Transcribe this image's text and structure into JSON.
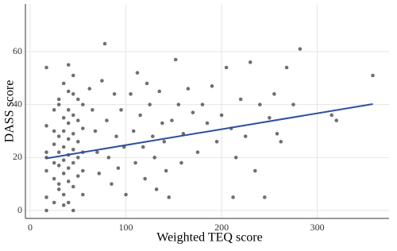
{
  "chart_data": {
    "type": "scatter",
    "x_label": "Weighted TEQ score",
    "y_label": "DASS score",
    "xlim": [
      -5,
      375
    ],
    "ylim": [
      -3,
      78
    ],
    "xticks": [
      0,
      100,
      200,
      300
    ],
    "yticks": [
      0,
      20,
      40,
      60
    ],
    "grid": true,
    "series": [
      {
        "type": "scatter",
        "color": "#333333",
        "x": [
          17,
          17,
          17,
          17,
          17,
          17,
          17,
          25,
          25,
          25,
          25,
          25,
          25,
          30,
          30,
          30,
          30,
          30,
          30,
          30,
          35,
          35,
          35,
          35,
          35,
          35,
          35,
          35,
          40,
          40,
          40,
          40,
          40,
          40,
          40,
          40,
          40,
          45,
          45,
          45,
          45,
          45,
          45,
          45,
          45,
          50,
          50,
          50,
          50,
          50,
          55,
          55,
          55,
          55,
          55,
          62,
          65,
          68,
          70,
          72,
          75,
          78,
          80,
          82,
          85,
          88,
          90,
          92,
          95,
          98,
          100,
          105,
          108,
          110,
          112,
          115,
          118,
          120,
          122,
          125,
          128,
          130,
          132,
          135,
          138,
          140,
          142,
          145,
          148,
          152,
          155,
          158,
          160,
          165,
          170,
          175,
          180,
          185,
          190,
          195,
          200,
          205,
          210,
          212,
          215,
          220,
          225,
          230,
          235,
          240,
          245,
          250,
          255,
          258,
          262,
          268,
          275,
          282,
          315,
          320,
          358
        ],
        "values": [
          54,
          22,
          20,
          15,
          5,
          0,
          32,
          38,
          30,
          18,
          12,
          3,
          25,
          40,
          28,
          22,
          17,
          10,
          42,
          8,
          48,
          35,
          30,
          24,
          19,
          14,
          6,
          2,
          55,
          45,
          38,
          33,
          27,
          21,
          16,
          11,
          3,
          51,
          44,
          36,
          29,
          23,
          18,
          9,
          0,
          42,
          34,
          26,
          20,
          13,
          40,
          31,
          22,
          15,
          6,
          46,
          38,
          30,
          22,
          14,
          49,
          63,
          34,
          20,
          10,
          44,
          28,
          16,
          38,
          24,
          6,
          44,
          30,
          18,
          52,
          36,
          24,
          12,
          48,
          40,
          28,
          20,
          8,
          45,
          33,
          26,
          15,
          5,
          34,
          57,
          40,
          18,
          29,
          46,
          37,
          22,
          40,
          33,
          47,
          26,
          36,
          54,
          31,
          5,
          20,
          42,
          28,
          56,
          15,
          40,
          5,
          35,
          44,
          29,
          26,
          54,
          40,
          61,
          36,
          34,
          51
        ]
      },
      {
        "type": "line",
        "color": "#2d4fa3",
        "x": [
          17,
          358
        ],
        "values": [
          19.7,
          40.2
        ]
      }
    ]
  }
}
